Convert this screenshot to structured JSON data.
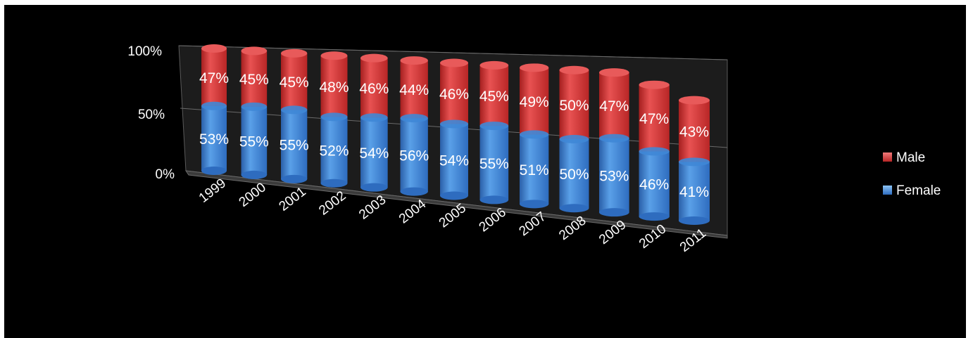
{
  "chart_data": {
    "type": "bar",
    "stacked": true,
    "percent_stacked": true,
    "three_d": true,
    "categories": [
      "1999",
      "2000",
      "2001",
      "2002",
      "2003",
      "2004",
      "2005",
      "2006",
      "2007",
      "2008",
      "2009",
      "2010",
      "2011"
    ],
    "series": [
      {
        "name": "Female",
        "color": "#3f87d6",
        "values": [
          53,
          55,
          55,
          52,
          54,
          56,
          54,
          55,
          51,
          50,
          53,
          46,
          41
        ],
        "labels": [
          "53%",
          "55%",
          "55%",
          "52%",
          "54%",
          "56%",
          "54%",
          "55%",
          "51%",
          "50%",
          "53%",
          "46%",
          "41%"
        ]
      },
      {
        "name": "Male",
        "color": "#d93434",
        "values": [
          47,
          45,
          45,
          48,
          46,
          44,
          46,
          45,
          49,
          50,
          47,
          47,
          43
        ],
        "labels": [
          "47%",
          "45%",
          "45%",
          "48%",
          "46%",
          "44%",
          "46%",
          "45%",
          "49%",
          "50%",
          "47%",
          "47%",
          "43%"
        ]
      }
    ],
    "y_ticks": [
      "0%",
      "50%",
      "100%"
    ],
    "ylim": [
      0,
      100
    ],
    "legend": {
      "position": "right",
      "order": [
        "Male",
        "Female"
      ]
    },
    "grid": true
  }
}
